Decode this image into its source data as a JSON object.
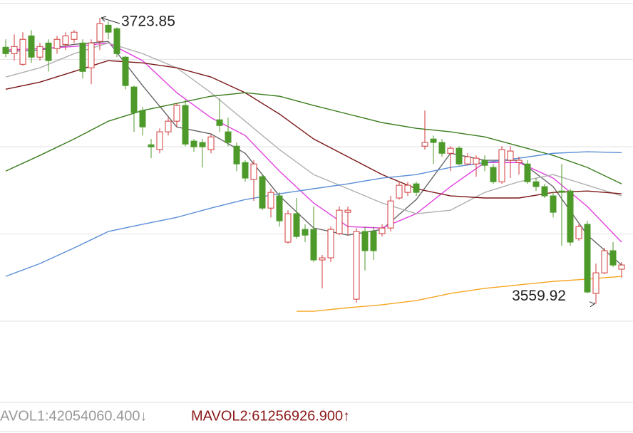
{
  "chart_data": {
    "type": "candlestick",
    "grid": true,
    "ylim": [
      3550,
      3732
    ],
    "yticks": [
      3550,
      3600,
      3650,
      3700
    ],
    "rise_color": "#d23a3a",
    "fall_color": "#4d9a2a",
    "open": [
      3707.0,
      3703.3,
      3697.2,
      3713.5,
      3701.3,
      3709.4,
      3706.2,
      3708.6,
      3711.5,
      3709.4,
      3695.2,
      3710.3,
      3719.6,
      3717.6,
      3701.3,
      3684.2,
      3670.7,
      3651.1,
      3648.3,
      3658.5,
      3664.6,
      3673.6,
      3653.2,
      3652.4,
      3648.3,
      3665.4,
      3658.5,
      3650.3,
      3640.9,
      3631.2,
      3632.8,
      3614.8,
      3621.8,
      3595.3,
      3611.6,
      3602.6,
      3602.6,
      3585.1,
      3586.3,
      3600.2,
      3612.4,
      3562.6,
      3601.4,
      3601.4,
      3600.2,
      3603.4,
      3620.6,
      3623.8,
      3628.7,
      3650.3,
      3654.4,
      3652.4,
      3646.2,
      3649.1,
      3640.1,
      3640.1,
      3642.2,
      3638.1,
      3629.9,
      3642.2,
      3640.9,
      3640.1,
      3629.9,
      3627.1,
      3621.8,
      3624.6,
      3624.6,
      3597.3,
      3605.5,
      3565.9,
      3577.7,
      3590.4,
      3579.8
    ],
    "high": [
      3711.5,
      3714.3,
      3715.6,
      3716.8,
      3709.4,
      3711.5,
      3713.5,
      3715.6,
      3716.8,
      3711.5,
      3711.5,
      3723.85,
      3721.7,
      3718.4,
      3702.1,
      3685.0,
      3672.7,
      3654.4,
      3660.5,
      3666.6,
      3674.8,
      3676.8,
      3654.4,
      3654.4,
      3657.3,
      3677.6,
      3666.6,
      3652.4,
      3642.2,
      3642.2,
      3634.0,
      3625.9,
      3623.8,
      3613.6,
      3620.6,
      3605.5,
      3615.7,
      3587.9,
      3604.2,
      3615.7,
      3615.7,
      3603.4,
      3604.2,
      3604.2,
      3605.5,
      3621.8,
      3629.9,
      3629.9,
      3629.9,
      3670.7,
      3656.4,
      3654.4,
      3650.3,
      3650.3,
      3646.2,
      3645.0,
      3645.0,
      3640.1,
      3650.3,
      3650.3,
      3644.2,
      3642.2,
      3632.0,
      3628.7,
      3623.8,
      3640.1,
      3625.9,
      3605.5,
      3607.5,
      3583.0,
      3592.0,
      3595.3,
      3583.8
    ],
    "low": [
      3701.3,
      3699.3,
      3696.4,
      3698.0,
      3699.3,
      3693.1,
      3703.3,
      3705.4,
      3709.4,
      3689.1,
      3685.8,
      3705.4,
      3711.5,
      3701.3,
      3682.9,
      3658.5,
      3656.4,
      3643.4,
      3646.2,
      3656.4,
      3661.3,
      3650.3,
      3647.1,
      3638.1,
      3646.2,
      3658.5,
      3650.3,
      3636.0,
      3629.9,
      3618.9,
      3613.6,
      3609.5,
      3604.2,
      3594.5,
      3597.3,
      3595.3,
      3583.8,
      3568.8,
      3583.8,
      3599.3,
      3599.3,
      3560.6,
      3579.0,
      3585.1,
      3598.5,
      3601.4,
      3619.7,
      3621.8,
      3621.8,
      3648.3,
      3640.1,
      3644.2,
      3636.0,
      3639.3,
      3639.3,
      3632.8,
      3636.0,
      3628.7,
      3628.7,
      3632.0,
      3634.0,
      3628.7,
      3624.6,
      3620.6,
      3609.5,
      3593.2,
      3593.2,
      3596.1,
      3565.9,
      3559.92,
      3576.9,
      3581.0,
      3574.9
    ],
    "close": [
      3703.3,
      3707.4,
      3711.5,
      3701.3,
      3707.4,
      3699.3,
      3711.5,
      3713.5,
      3715.6,
      3693.1,
      3709.4,
      3720.5,
      3715.6,
      3703.3,
      3685.0,
      3669.5,
      3661.3,
      3649.9,
      3658.5,
      3664.6,
      3673.6,
      3651.5,
      3649.9,
      3649.9,
      3655.6,
      3662.1,
      3652.4,
      3640.1,
      3632.0,
      3640.1,
      3614.8,
      3623.8,
      3607.5,
      3611.6,
      3598.5,
      3599.3,
      3585.1,
      3586.3,
      3602.6,
      3613.6,
      3613.6,
      3601.4,
      3590.4,
      3590.4,
      3603.4,
      3618.9,
      3627.9,
      3627.9,
      3623.8,
      3652.4,
      3652.4,
      3646.2,
      3649.1,
      3640.1,
      3644.2,
      3643.4,
      3639.3,
      3629.9,
      3648.3,
      3647.5,
      3642.2,
      3629.9,
      3627.1,
      3621.8,
      3612.4,
      3623.8,
      3595.3,
      3604.2,
      3566.7,
      3577.7,
      3590.4,
      3582.2,
      3582.2
    ],
    "series": [
      {
        "color": "#666666",
        "x": [
          0,
          4,
          8,
          12,
          16,
          20,
          24,
          28,
          32,
          36,
          40,
          44,
          48,
          52,
          56,
          60,
          64,
          68,
          72
        ],
        "values": [
          3704.6,
          3705.4,
          3708.6,
          3710.3,
          3685.0,
          3661.3,
          3657.3,
          3646.2,
          3621.8,
          3603.4,
          3599.3,
          3602.6,
          3619.7,
          3646.2,
          3642.2,
          3642.2,
          3627.1,
          3599.3,
          3582.2
        ]
      },
      {
        "color": "#e040e0",
        "x": [
          0,
          4,
          8,
          12,
          16,
          20,
          24,
          28,
          32,
          36,
          40,
          44,
          48,
          52,
          56,
          60,
          64,
          68,
          72
        ],
        "values": [
          3705.4,
          3706.2,
          3707.4,
          3709.4,
          3699.3,
          3680.9,
          3666.6,
          3656.4,
          3636.0,
          3617.7,
          3604.2,
          3603.4,
          3611.6,
          3627.1,
          3640.9,
          3640.9,
          3632.0,
          3615.7,
          3595.3
        ]
      },
      {
        "color": "#b0b0b0",
        "x": [
          0,
          4,
          8,
          12,
          16,
          20,
          24,
          28,
          32,
          36,
          40,
          44,
          48,
          52,
          56,
          60,
          64,
          68,
          72
        ],
        "values": [
          3689.9,
          3695.2,
          3703.3,
          3709.4,
          3703.3,
          3695.2,
          3680.9,
          3664.6,
          3648.3,
          3634.0,
          3625.9,
          3617.7,
          3611.6,
          3613.6,
          3623.8,
          3629.9,
          3634.0,
          3627.9,
          3621.8
        ]
      },
      {
        "color": "#7a1616",
        "x": [
          0,
          4,
          8,
          12,
          16,
          20,
          24,
          28,
          32,
          36,
          40,
          44,
          48,
          52,
          56,
          60,
          64,
          68,
          72
        ],
        "values": [
          3682.9,
          3687.0,
          3693.1,
          3699.3,
          3698.0,
          3695.2,
          3689.9,
          3680.9,
          3668.7,
          3654.4,
          3644.2,
          3634.0,
          3625.9,
          3621.8,
          3620.6,
          3620.6,
          3623.8,
          3624.6,
          3623.0
        ]
      },
      {
        "color": "#3a7d1e",
        "x": [
          0,
          4,
          8,
          12,
          16,
          20,
          24,
          28,
          32,
          36,
          40,
          44,
          48,
          52,
          56,
          60,
          64,
          68,
          72
        ],
        "values": [
          3636.0,
          3645.0,
          3654.4,
          3664.6,
          3670.7,
          3674.8,
          3678.9,
          3680.9,
          3678.9,
          3673.6,
          3668.7,
          3663.8,
          3660.5,
          3658.5,
          3655.6,
          3650.3,
          3645.0,
          3638.1,
          3628.7
        ]
      },
      {
        "color": "#5b8fd6",
        "x": [
          0,
          4,
          8,
          12,
          16,
          20,
          24,
          28,
          32,
          36,
          40,
          44,
          48,
          52,
          56,
          60,
          64,
          68,
          72
        ],
        "values": [
          3575.7,
          3583.0,
          3592.0,
          3601.4,
          3605.5,
          3609.5,
          3614.8,
          3619.7,
          3623.0,
          3625.9,
          3628.7,
          3632.0,
          3634.0,
          3638.1,
          3640.9,
          3643.4,
          3646.2,
          3647.1,
          3646.6
        ]
      },
      {
        "color": "#f5a623",
        "x": [
          34,
          36,
          40,
          44,
          48,
          52,
          56,
          60,
          64,
          68,
          72
        ],
        "values": [
          3555.7,
          3555.7,
          3557.7,
          3559.4,
          3561.8,
          3565.9,
          3568.8,
          3570.8,
          3572.8,
          3574.1,
          3575.7
        ]
      }
    ],
    "annotations": [
      {
        "text": "3723.85",
        "index": 11,
        "value": 3723.85
      },
      {
        "text": "3559.92",
        "index": 69,
        "value": 3559.92
      }
    ],
    "volume_labels": [
      {
        "text": "AVOL1:42054060.400↓",
        "color": "#999999"
      },
      {
        "text": "MAVOL2:61256926.900↑",
        "color": "#8b1a1a"
      }
    ]
  }
}
